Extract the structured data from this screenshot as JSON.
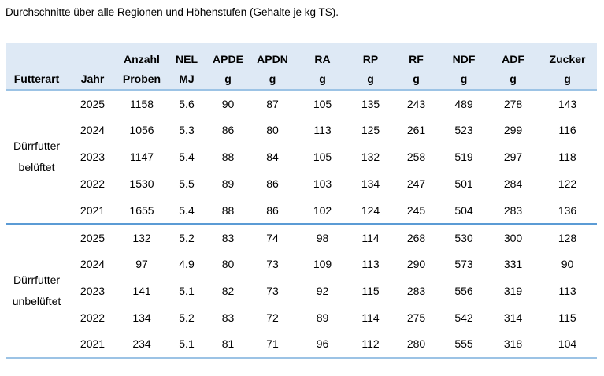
{
  "title": "Durchschnitte über alle Regionen und Höhenstufen (Gehalte je kg TS).",
  "colors": {
    "header_bg": "#dee9f5",
    "light_border": "#9cc3e5",
    "group_divider": "#5b9bd5",
    "text": "#000000"
  },
  "table": {
    "columns": [
      {
        "key": "futterart",
        "line1": "",
        "line2": "Futterart"
      },
      {
        "key": "jahr",
        "line1": "",
        "line2": "Jahr"
      },
      {
        "key": "anzahl-proben",
        "line1": "Anzahl",
        "line2": "Proben"
      },
      {
        "key": "nel",
        "line1": "NEL",
        "line2": "MJ"
      },
      {
        "key": "apde",
        "line1": "APDE",
        "line2": "g"
      },
      {
        "key": "apdn",
        "line1": "APDN",
        "line2": "g"
      },
      {
        "key": "ra",
        "line1": "RA",
        "line2": "g"
      },
      {
        "key": "rp",
        "line1": "RP",
        "line2": "g"
      },
      {
        "key": "rf",
        "line1": "RF",
        "line2": "g"
      },
      {
        "key": "ndf",
        "line1": "NDF",
        "line2": "g"
      },
      {
        "key": "adf",
        "line1": "ADF",
        "line2": "g"
      },
      {
        "key": "zucker",
        "line1": "Zucker",
        "line2": "g"
      }
    ],
    "value_column_keys": [
      "anzahl-proben",
      "nel",
      "apde",
      "apdn",
      "ra",
      "rp",
      "rf",
      "ndf",
      "adf",
      "zucker"
    ],
    "groups": [
      {
        "id": "duerrfutter-belueftet",
        "futterart_lines": [
          "Dürrfutter",
          "belüftet"
        ],
        "rows": [
          {
            "jahr": "2025",
            "values": [
              "1158",
              "5.6",
              "90",
              "87",
              "105",
              "135",
              "243",
              "489",
              "278",
              "143"
            ]
          },
          {
            "jahr": "2024",
            "values": [
              "1056",
              "5.3",
              "86",
              "80",
              "113",
              "125",
              "261",
              "523",
              "299",
              "116"
            ]
          },
          {
            "jahr": "2023",
            "values": [
              "1147",
              "5.4",
              "88",
              "84",
              "105",
              "132",
              "258",
              "519",
              "297",
              "118"
            ]
          },
          {
            "jahr": "2022",
            "values": [
              "1530",
              "5.5",
              "89",
              "86",
              "103",
              "134",
              "247",
              "501",
              "284",
              "122"
            ]
          },
          {
            "jahr": "2021",
            "values": [
              "1655",
              "5.4",
              "88",
              "86",
              "102",
              "124",
              "245",
              "504",
              "283",
              "136"
            ]
          }
        ]
      },
      {
        "id": "duerrfutter-unbelueftet",
        "futterart_lines": [
          "Dürrfutter",
          "unbelüftet"
        ],
        "rows": [
          {
            "jahr": "2025",
            "values": [
              "132",
              "5.2",
              "83",
              "74",
              "98",
              "114",
              "268",
              "530",
              "300",
              "128"
            ]
          },
          {
            "jahr": "2024",
            "values": [
              "97",
              "4.9",
              "80",
              "73",
              "109",
              "113",
              "290",
              "573",
              "331",
              "90"
            ]
          },
          {
            "jahr": "2023",
            "values": [
              "141",
              "5.1",
              "82",
              "73",
              "92",
              "115",
              "283",
              "556",
              "319",
              "113"
            ]
          },
          {
            "jahr": "2022",
            "values": [
              "134",
              "5.2",
              "83",
              "72",
              "89",
              "114",
              "275",
              "542",
              "314",
              "115"
            ]
          },
          {
            "jahr": "2021",
            "values": [
              "234",
              "5.1",
              "81",
              "71",
              "96",
              "112",
              "280",
              "555",
              "318",
              "104"
            ]
          }
        ]
      }
    ]
  }
}
